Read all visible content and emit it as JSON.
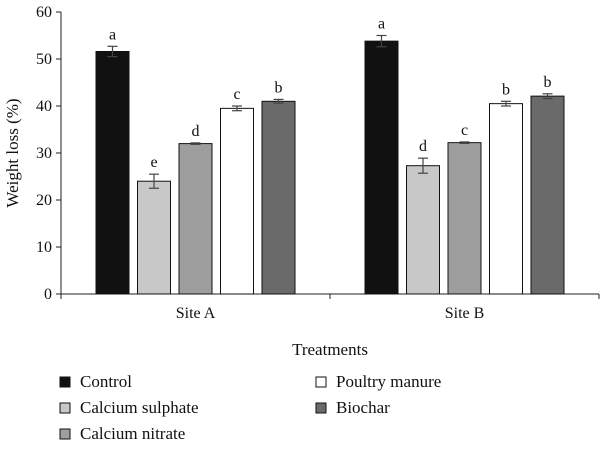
{
  "chart_data": {
    "type": "bar",
    "xlabel": "Treatments",
    "ylabel": "Weight loss (%)",
    "ylim": [
      0,
      60
    ],
    "yticks": [
      0,
      10,
      20,
      30,
      40,
      50,
      60
    ],
    "categories": [
      "Site A",
      "Site B"
    ],
    "legend_position": "bottom",
    "series": [
      {
        "name": "Control",
        "color": "#111111",
        "values": [
          51.6,
          53.8
        ],
        "errors": [
          1.1,
          1.2
        ],
        "letters": [
          "a",
          "a"
        ]
      },
      {
        "name": "Calcium sulphate",
        "color": "#c8c8c8",
        "values": [
          24.0,
          27.3
        ],
        "errors": [
          1.5,
          1.6
        ],
        "letters": [
          "e",
          "d"
        ]
      },
      {
        "name": "Calcium nitrate",
        "color": "#9e9e9e",
        "values": [
          32.0,
          32.2
        ],
        "errors": [
          0.15,
          0.15
        ],
        "letters": [
          "d",
          "c"
        ]
      },
      {
        "name": "Poultry manure",
        "color": "#ffffff",
        "values": [
          39.5,
          40.5
        ],
        "errors": [
          0.5,
          0.5
        ],
        "letters": [
          "c",
          "b"
        ]
      },
      {
        "name": "Biochar",
        "color": "#6a6a6a",
        "values": [
          41.0,
          42.1
        ],
        "errors": [
          0.4,
          0.5
        ],
        "letters": [
          "b",
          "b"
        ]
      }
    ]
  }
}
